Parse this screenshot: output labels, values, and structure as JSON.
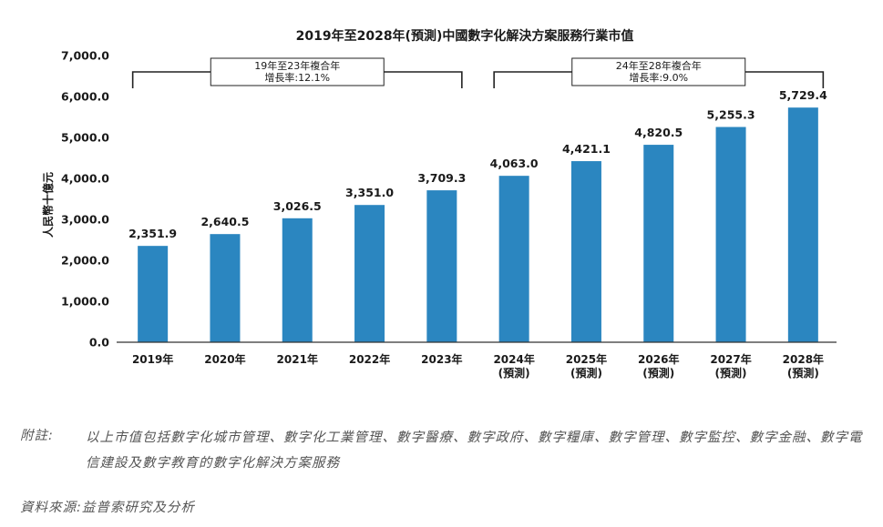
{
  "chart_data": {
    "type": "bar",
    "title": "2019年至2028年(預測)中國數字化解決方案服務行業市值",
    "ylabel": "人民幣十億元",
    "xlabel": "",
    "categories": [
      [
        "2019年"
      ],
      [
        "2020年"
      ],
      [
        "2021年"
      ],
      [
        "2022年"
      ],
      [
        "2023年"
      ],
      [
        "2024年",
        "(預測)"
      ],
      [
        "2025年",
        "(預測)"
      ],
      [
        "2026年",
        "(預測)"
      ],
      [
        "2027年",
        "(預測)"
      ],
      [
        "2028年",
        "(預測)"
      ]
    ],
    "values": [
      2351.9,
      2640.5,
      3026.5,
      3351.0,
      3709.3,
      4063.0,
      4421.1,
      4820.5,
      5255.3,
      5729.4
    ],
    "value_labels": [
      "2,351.9",
      "2,640.5",
      "3,026.5",
      "3,351.0",
      "3,709.3",
      "4,063.0",
      "4,421.1",
      "4,820.5",
      "5,255.3",
      "5,729.4"
    ],
    "ylim": [
      0,
      7000
    ],
    "yticks": [
      0,
      1000,
      2000,
      3000,
      4000,
      5000,
      6000,
      7000
    ],
    "ytick_labels": [
      "0.0",
      "1,000.0",
      "2,000.0",
      "3,000.0",
      "4,000.0",
      "5,000.0",
      "6,000.0",
      "7,000.0"
    ],
    "grid": false,
    "bar_color": "#2b86c0",
    "annotations": [
      {
        "from_index": 0,
        "to_index": 4,
        "lines": [
          "19年至23年複合年",
          "增長率:12.1%"
        ]
      },
      {
        "from_index": 5,
        "to_index": 9,
        "lines": [
          "24年至28年複合年",
          "增長率:9.0%"
        ]
      }
    ]
  },
  "note": {
    "prefix": "附註:",
    "text": "以上市值包括數字化城市管理、數字化工業管理、數字醫療、數字政府、數字糧庫、數字管理、數字監控、數字金融、數字電信建設及數字教育的數字化解決方案服務"
  },
  "source": "資料來源:益普索研究及分析"
}
